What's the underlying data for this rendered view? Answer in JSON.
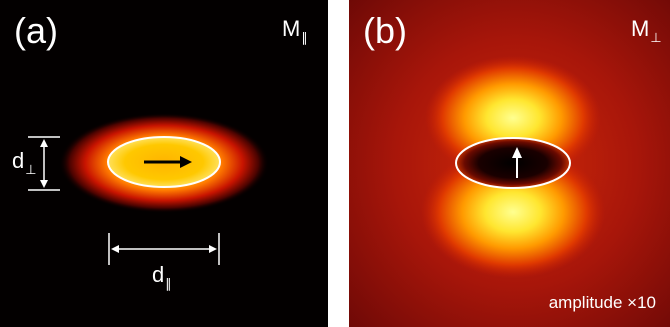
{
  "panel_a": {
    "label": "(a)",
    "mode_symbol": "M",
    "mode_subscript": "∥",
    "dim_perp_symbol": "d",
    "dim_perp_subscript": "⊥",
    "dim_par_symbol": "d",
    "dim_par_subscript": "∥"
  },
  "panel_b": {
    "label": "(b)",
    "mode_symbol": "M",
    "mode_subscript": "⊥",
    "amplitude_text": "amplitude ×10"
  }
}
